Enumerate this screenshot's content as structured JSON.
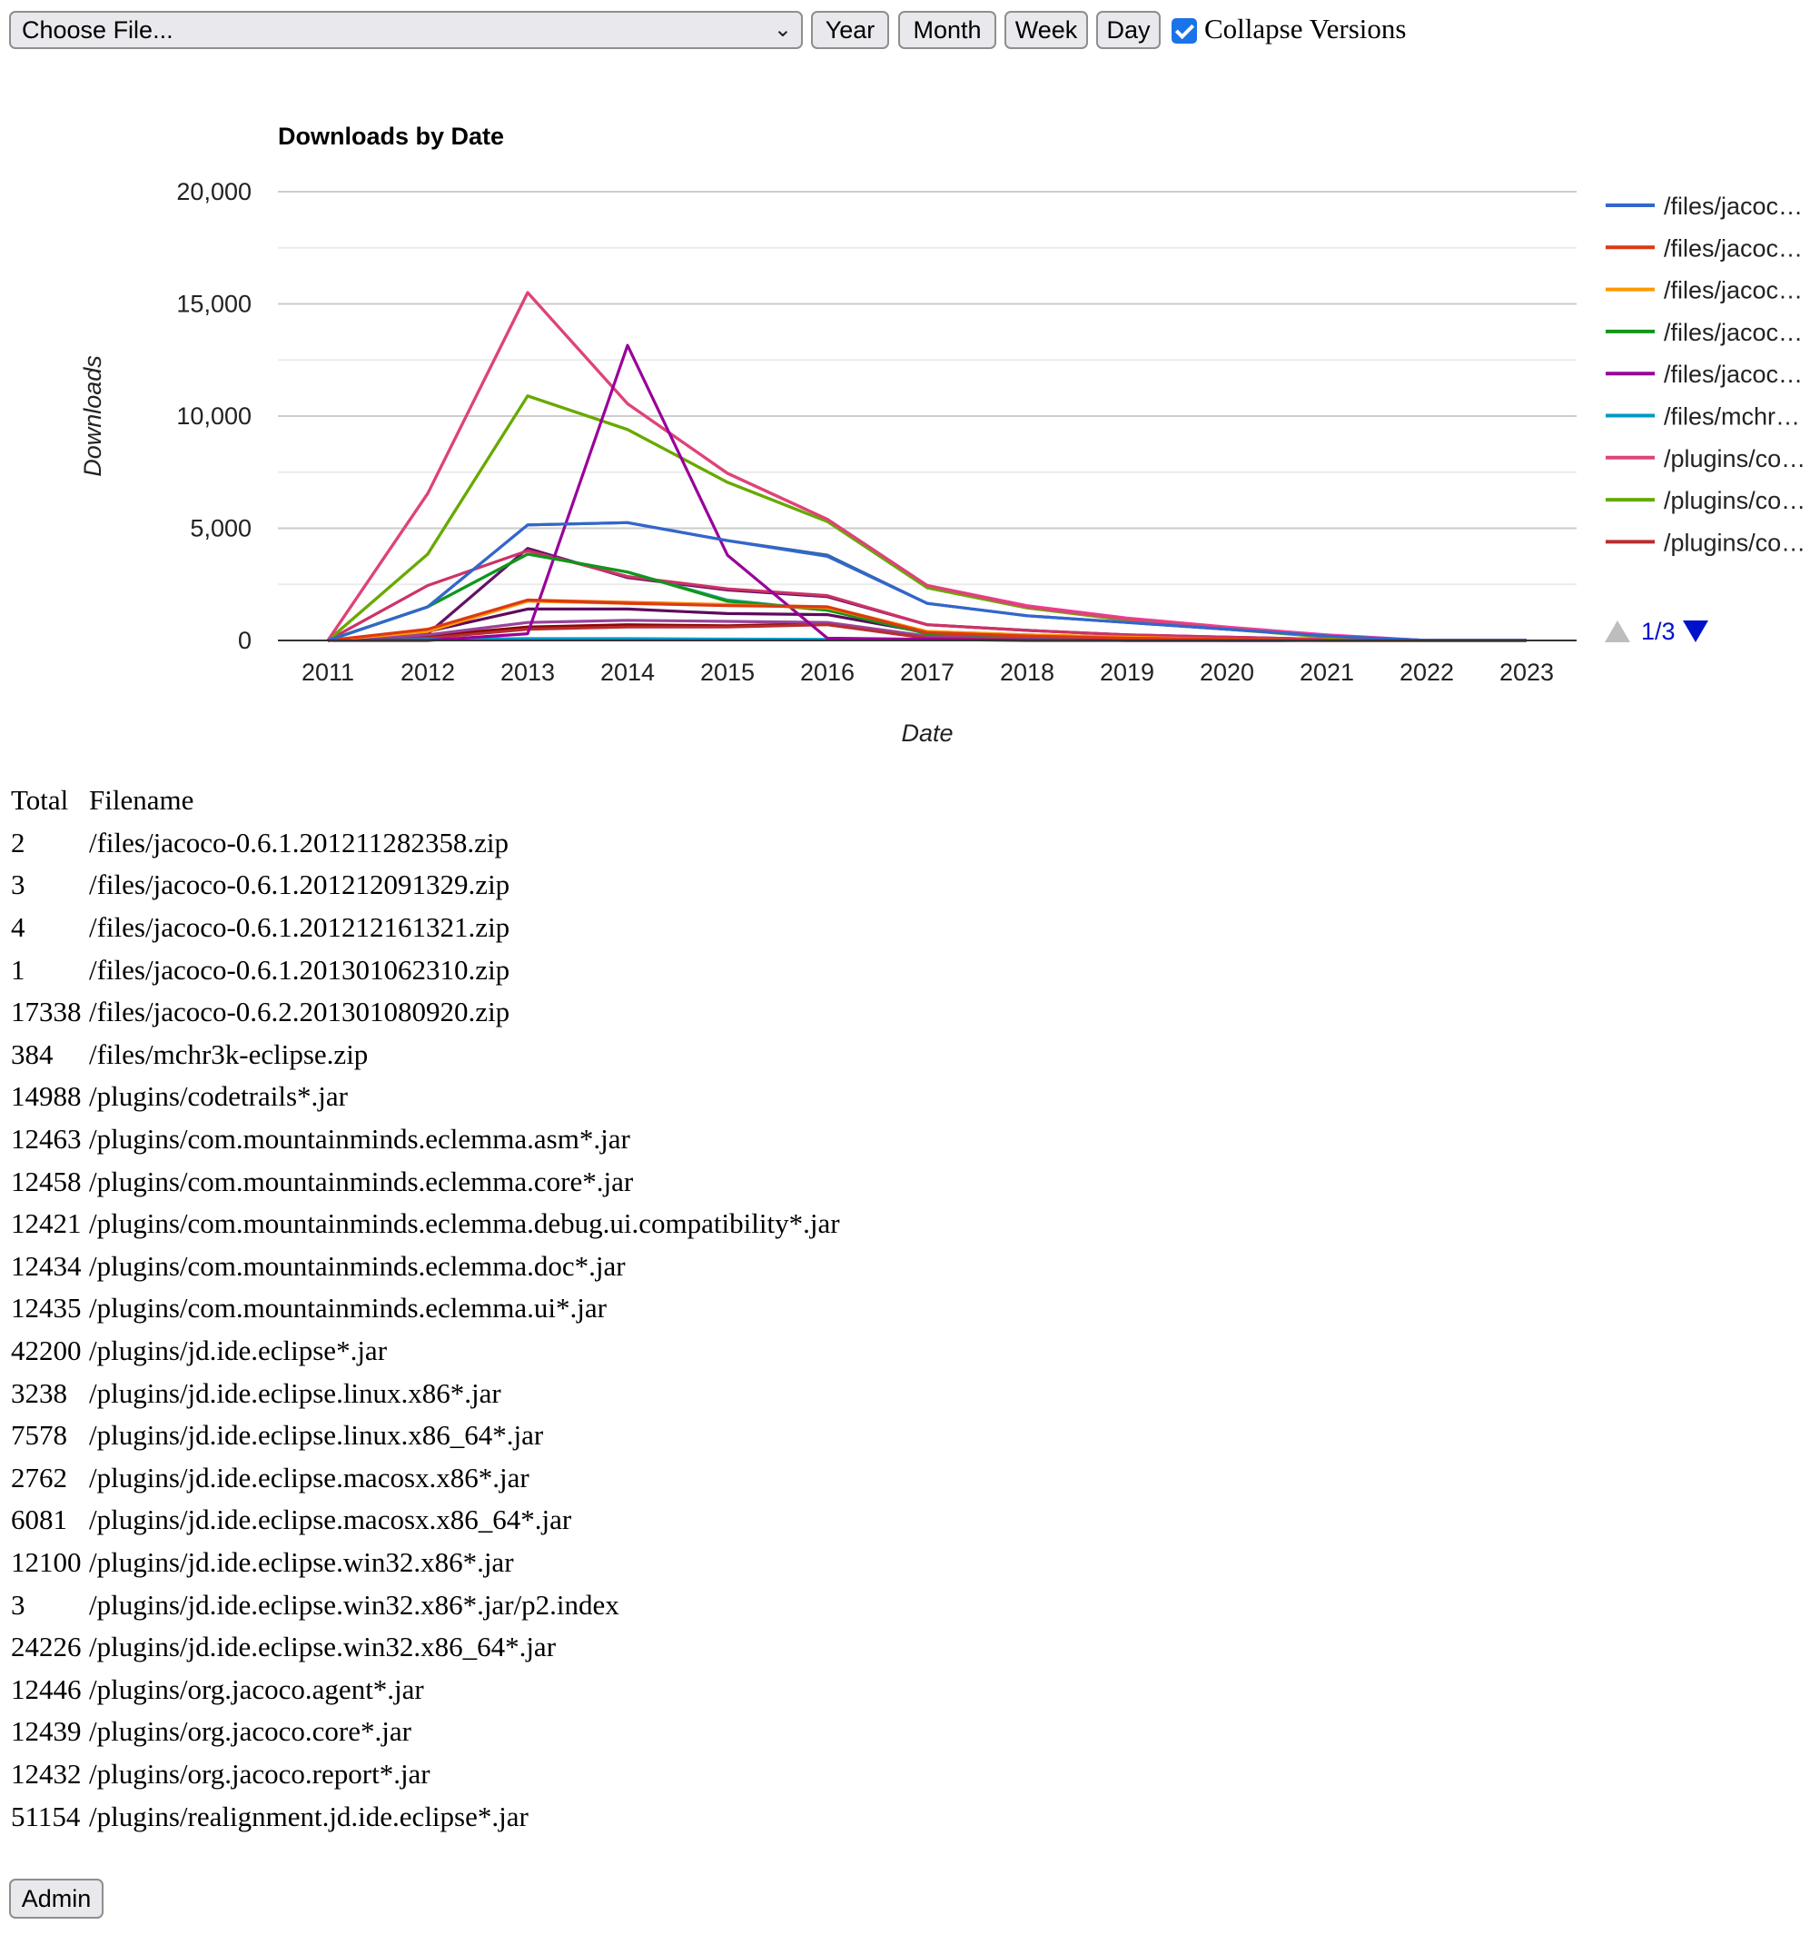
{
  "toolbar": {
    "file_select": "Choose File...",
    "year": "Year",
    "month": "Month",
    "week": "Week",
    "day": "Day",
    "collapse_label": "Collapse Versions",
    "collapse_checked": true
  },
  "chart_data": {
    "type": "line",
    "title": "Downloads by Date",
    "xlabel": "Date",
    "ylabel": "Downloads",
    "ylim": [
      0,
      20000
    ],
    "yticks": [
      "0",
      "5,000",
      "10,000",
      "15,000",
      "20,000"
    ],
    "grid": true,
    "legend_position": "right",
    "legend_page": "1/3",
    "x": [
      "2011",
      "2012",
      "2013",
      "2014",
      "2015",
      "2016",
      "2017",
      "2018",
      "2019",
      "2020",
      "2021",
      "2022",
      "2023"
    ],
    "series": [
      {
        "name": "/files/jacoc…",
        "color": "#3366cc",
        "values": [
          0,
          1500,
          5150,
          5250,
          4450,
          3750,
          1650,
          1100,
          800,
          500,
          200,
          0,
          0
        ]
      },
      {
        "name": "/files/jacoc…",
        "color": "#dc3912",
        "values": [
          0,
          500,
          1800,
          1650,
          1550,
          1500,
          350,
          200,
          100,
          50,
          0,
          0,
          0
        ]
      },
      {
        "name": "/files/jacoc…",
        "color": "#ff9900",
        "values": [
          0,
          400,
          1750,
          1650,
          1600,
          1450,
          400,
          250,
          150,
          50,
          0,
          0,
          0
        ]
      },
      {
        "name": "/files/jacoc…",
        "color": "#109618",
        "values": [
          0,
          1500,
          3850,
          3050,
          1750,
          1350,
          300,
          200,
          100,
          50,
          0,
          0,
          0
        ]
      },
      {
        "name": "/files/jacoc…",
        "color": "#990099",
        "values": [
          0,
          0,
          300,
          13150,
          3800,
          100,
          50,
          0,
          0,
          0,
          0,
          0,
          0
        ]
      },
      {
        "name": "/files/mchr…",
        "color": "#0099c6",
        "values": [
          0,
          50,
          80,
          80,
          60,
          50,
          30,
          20,
          10,
          5,
          0,
          0,
          0
        ]
      },
      {
        "name": "/plugins/co…",
        "color": "#dd4477",
        "values": [
          0,
          6550,
          15500,
          10550,
          7450,
          5400,
          2450,
          1500,
          950,
          550,
          200,
          0,
          0
        ]
      },
      {
        "name": "/plugins/co…",
        "color": "#66aa00",
        "values": [
          0,
          3850,
          10900,
          9400,
          7050,
          5300,
          2350,
          1450,
          900,
          500,
          150,
          0,
          0
        ]
      },
      {
        "name": "/plugins/co…",
        "color": "#b82e2e",
        "values": [
          0,
          100,
          500,
          600,
          600,
          700,
          100,
          50,
          0,
          0,
          0,
          0,
          0
        ]
      },
      {
        "name": "",
        "color": "#aaaa11",
        "values": [
          0,
          3850,
          10900,
          9400,
          7050,
          5300,
          2350,
          1450,
          950,
          550,
          200,
          0,
          0
        ]
      },
      {
        "name": "",
        "color": "#316395",
        "values": [
          0,
          1500,
          5150,
          5250,
          4450,
          3800,
          1650,
          1100,
          800,
          500,
          200,
          0,
          0
        ]
      },
      {
        "name": "",
        "color": "#cc3366",
        "values": [
          0,
          2450,
          4000,
          2850,
          2300,
          2000,
          700,
          450,
          250,
          150,
          50,
          0,
          0
        ]
      },
      {
        "name": "",
        "color": "#22aa99",
        "values": [
          0,
          1500,
          3850,
          3050,
          1800,
          1350,
          350,
          200,
          100,
          50,
          0,
          0,
          0
        ]
      },
      {
        "name": "",
        "color": "#994499",
        "values": [
          0,
          250,
          800,
          900,
          850,
          800,
          200,
          100,
          50,
          0,
          0,
          0,
          0
        ]
      },
      {
        "name": "",
        "color": "#5d0a5d",
        "values": [
          0,
          400,
          1400,
          1400,
          1200,
          1150,
          350,
          200,
          100,
          50,
          0,
          0,
          0
        ]
      },
      {
        "name": "",
        "color": "#e67300",
        "values": [
          0,
          450,
          1800,
          1700,
          1600,
          1500,
          400,
          250,
          150,
          50,
          0,
          0,
          0
        ]
      },
      {
        "name": "",
        "color": "#8b0707",
        "values": [
          0,
          200,
          600,
          700,
          650,
          750,
          150,
          50,
          0,
          0,
          0,
          0,
          0
        ]
      },
      {
        "name": "",
        "color": "#651067",
        "values": [
          0,
          300,
          4100,
          2800,
          2250,
          1950,
          700,
          450,
          250,
          150,
          50,
          0,
          0
        ]
      },
      {
        "name": "",
        "color": "#ff33aa",
        "values": [
          0,
          6550,
          15500,
          10550,
          7450,
          5400,
          2450,
          1550,
          1000,
          600,
          250,
          0,
          0
        ]
      }
    ]
  },
  "table": {
    "headers": [
      "Total",
      "Filename"
    ],
    "rows": [
      [
        "2",
        "/files/jacoco-0.6.1.201211282358.zip"
      ],
      [
        "3",
        "/files/jacoco-0.6.1.201212091329.zip"
      ],
      [
        "4",
        "/files/jacoco-0.6.1.201212161321.zip"
      ],
      [
        "1",
        "/files/jacoco-0.6.1.201301062310.zip"
      ],
      [
        "17338",
        "/files/jacoco-0.6.2.201301080920.zip"
      ],
      [
        "384",
        "/files/mchr3k-eclipse.zip"
      ],
      [
        "14988",
        "/plugins/codetrails*.jar"
      ],
      [
        "12463",
        "/plugins/com.mountainminds.eclemma.asm*.jar"
      ],
      [
        "12458",
        "/plugins/com.mountainminds.eclemma.core*.jar"
      ],
      [
        "12421",
        "/plugins/com.mountainminds.eclemma.debug.ui.compatibility*.jar"
      ],
      [
        "12434",
        "/plugins/com.mountainminds.eclemma.doc*.jar"
      ],
      [
        "12435",
        "/plugins/com.mountainminds.eclemma.ui*.jar"
      ],
      [
        "42200",
        "/plugins/jd.ide.eclipse*.jar"
      ],
      [
        "3238",
        "/plugins/jd.ide.eclipse.linux.x86*.jar"
      ],
      [
        "7578",
        "/plugins/jd.ide.eclipse.linux.x86_64*.jar"
      ],
      [
        "2762",
        "/plugins/jd.ide.eclipse.macosx.x86*.jar"
      ],
      [
        "6081",
        "/plugins/jd.ide.eclipse.macosx.x86_64*.jar"
      ],
      [
        "12100",
        "/plugins/jd.ide.eclipse.win32.x86*.jar"
      ],
      [
        "3",
        "/plugins/jd.ide.eclipse.win32.x86*.jar/p2.index"
      ],
      [
        "24226",
        "/plugins/jd.ide.eclipse.win32.x86_64*.jar"
      ],
      [
        "12446",
        "/plugins/org.jacoco.agent*.jar"
      ],
      [
        "12439",
        "/plugins/org.jacoco.core*.jar"
      ],
      [
        "12432",
        "/plugins/org.jacoco.report*.jar"
      ],
      [
        "51154",
        "/plugins/realignment.jd.ide.eclipse*.jar"
      ]
    ]
  },
  "admin_button": "Admin"
}
